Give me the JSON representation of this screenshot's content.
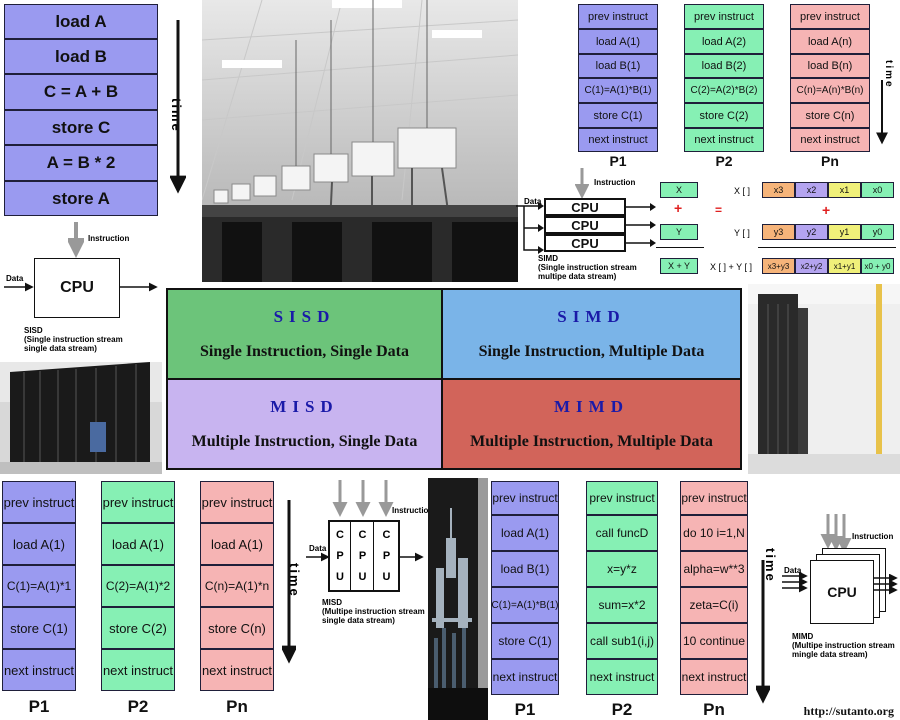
{
  "sisd_seq": [
    "load A",
    "load B",
    "C = A + B",
    "store C",
    "A = B * 2",
    "store A"
  ],
  "time_label": "time",
  "simd_table": {
    "p1": [
      "prev instruct",
      "load A(1)",
      "load B(1)",
      "C(1)=A(1)*B(1)",
      "store C(1)",
      "next instruct"
    ],
    "p2": [
      "prev instruct",
      "load A(2)",
      "load B(2)",
      "C(2)=A(2)*B(2)",
      "store C(2)",
      "next instruct"
    ],
    "pn": [
      "prev instruct",
      "load A(n)",
      "load B(n)",
      "C(n)=A(n)*B(n)",
      "store C(n)",
      "next instruct"
    ],
    "labels": [
      "P1",
      "P2",
      "Pn"
    ]
  },
  "sisd_diagram": {
    "instruction": "Instruction",
    "data": "Data",
    "cpu": "CPU",
    "caption_1": "SISD",
    "caption_2": "(Single instruction stream",
    "caption_3": "single data stream)"
  },
  "simd_diagram": {
    "instruction": "Instruction",
    "data": "Data",
    "cpu": [
      "CPU",
      "CPU",
      "CPU"
    ],
    "caption_1": "SIMD",
    "caption_2": "(Single instruction stream",
    "caption_3": "multipe data stream)"
  },
  "vector": {
    "x": "X",
    "y": "Y",
    "xy": "X + Y",
    "plus": "+",
    "equals": "=",
    "x_label": "X [ ]",
    "y_label": "Y [ ]",
    "sum_label": "X [ ] + Y [ ]",
    "x_cells": [
      "x3",
      "x2",
      "x1",
      "x0"
    ],
    "y_cells": [
      "y3",
      "y2",
      "y1",
      "y0"
    ],
    "sum_cells": [
      "x3+y3",
      "x2+y2",
      "x1+y1",
      "x0 + y0"
    ],
    "colors": [
      "#f6b47a",
      "#b4a4f0",
      "#f0f07a",
      "#86f0b4"
    ]
  },
  "taxonomy": {
    "sisd_abbr": "SISD",
    "sisd_full": "Single Instruction, Single Data",
    "simd_abbr": "SIMD",
    "simd_full": "Single Instruction, Multiple Data",
    "misd_abbr": "MISD",
    "misd_full": "Multiple Instruction, Single Data",
    "mimd_abbr": "MIMD",
    "mimd_full": "Multiple Instruction, Multiple Data",
    "colors": {
      "sisd": "#6cc47a",
      "simd": "#7ab4e8",
      "misd": "#c8b4f0",
      "mimd": "#d2645a"
    }
  },
  "misd_table": {
    "p1": [
      "prev instruct",
      "load A(1)",
      "C(1)=A(1)*1",
      "store C(1)",
      "next instruct"
    ],
    "p2": [
      "prev instruct",
      "load A(1)",
      "C(2)=A(1)*2",
      "store C(2)",
      "next instruct"
    ],
    "pn": [
      "prev instruct",
      "load A(1)",
      "C(n)=A(1)*n",
      "store C(n)",
      "next instruct"
    ],
    "labels": [
      "P1",
      "P2",
      "Pn"
    ]
  },
  "misd_diagram": {
    "instruction": "Instruction",
    "data": "Data",
    "cpu_letters": [
      "C",
      "P",
      "U"
    ],
    "caption_1": "MISD",
    "caption_2": "(Multipe instruction stream",
    "caption_3": "single data stream)"
  },
  "mimd_table": {
    "p1": [
      "prev instruct",
      "load A(1)",
      "load B(1)",
      "C(1)=A(1)*B(1)",
      "store C(1)",
      "next instruct"
    ],
    "p2": [
      "prev instruct",
      "call funcD",
      "x=y*z",
      "sum=x*2",
      "call sub1(i,j)",
      "next instruct"
    ],
    "pn": [
      "prev instruct",
      "do 10 i=1,N",
      "alpha=w**3",
      "zeta=C(i)",
      "10 continue",
      "next instruct"
    ],
    "labels": [
      "P1",
      "P2",
      "Pn"
    ]
  },
  "mimd_diagram": {
    "instruction": "Instruction",
    "data": "Data",
    "cpu": "CPU",
    "caption_1": "MIMD",
    "caption_2": "(Multipe instruction stream",
    "caption_3": "mingle data stream)"
  },
  "credit": "http://sutanto.org",
  "icons": [
    "arrow-down-icon",
    "arrow-right-icon"
  ]
}
